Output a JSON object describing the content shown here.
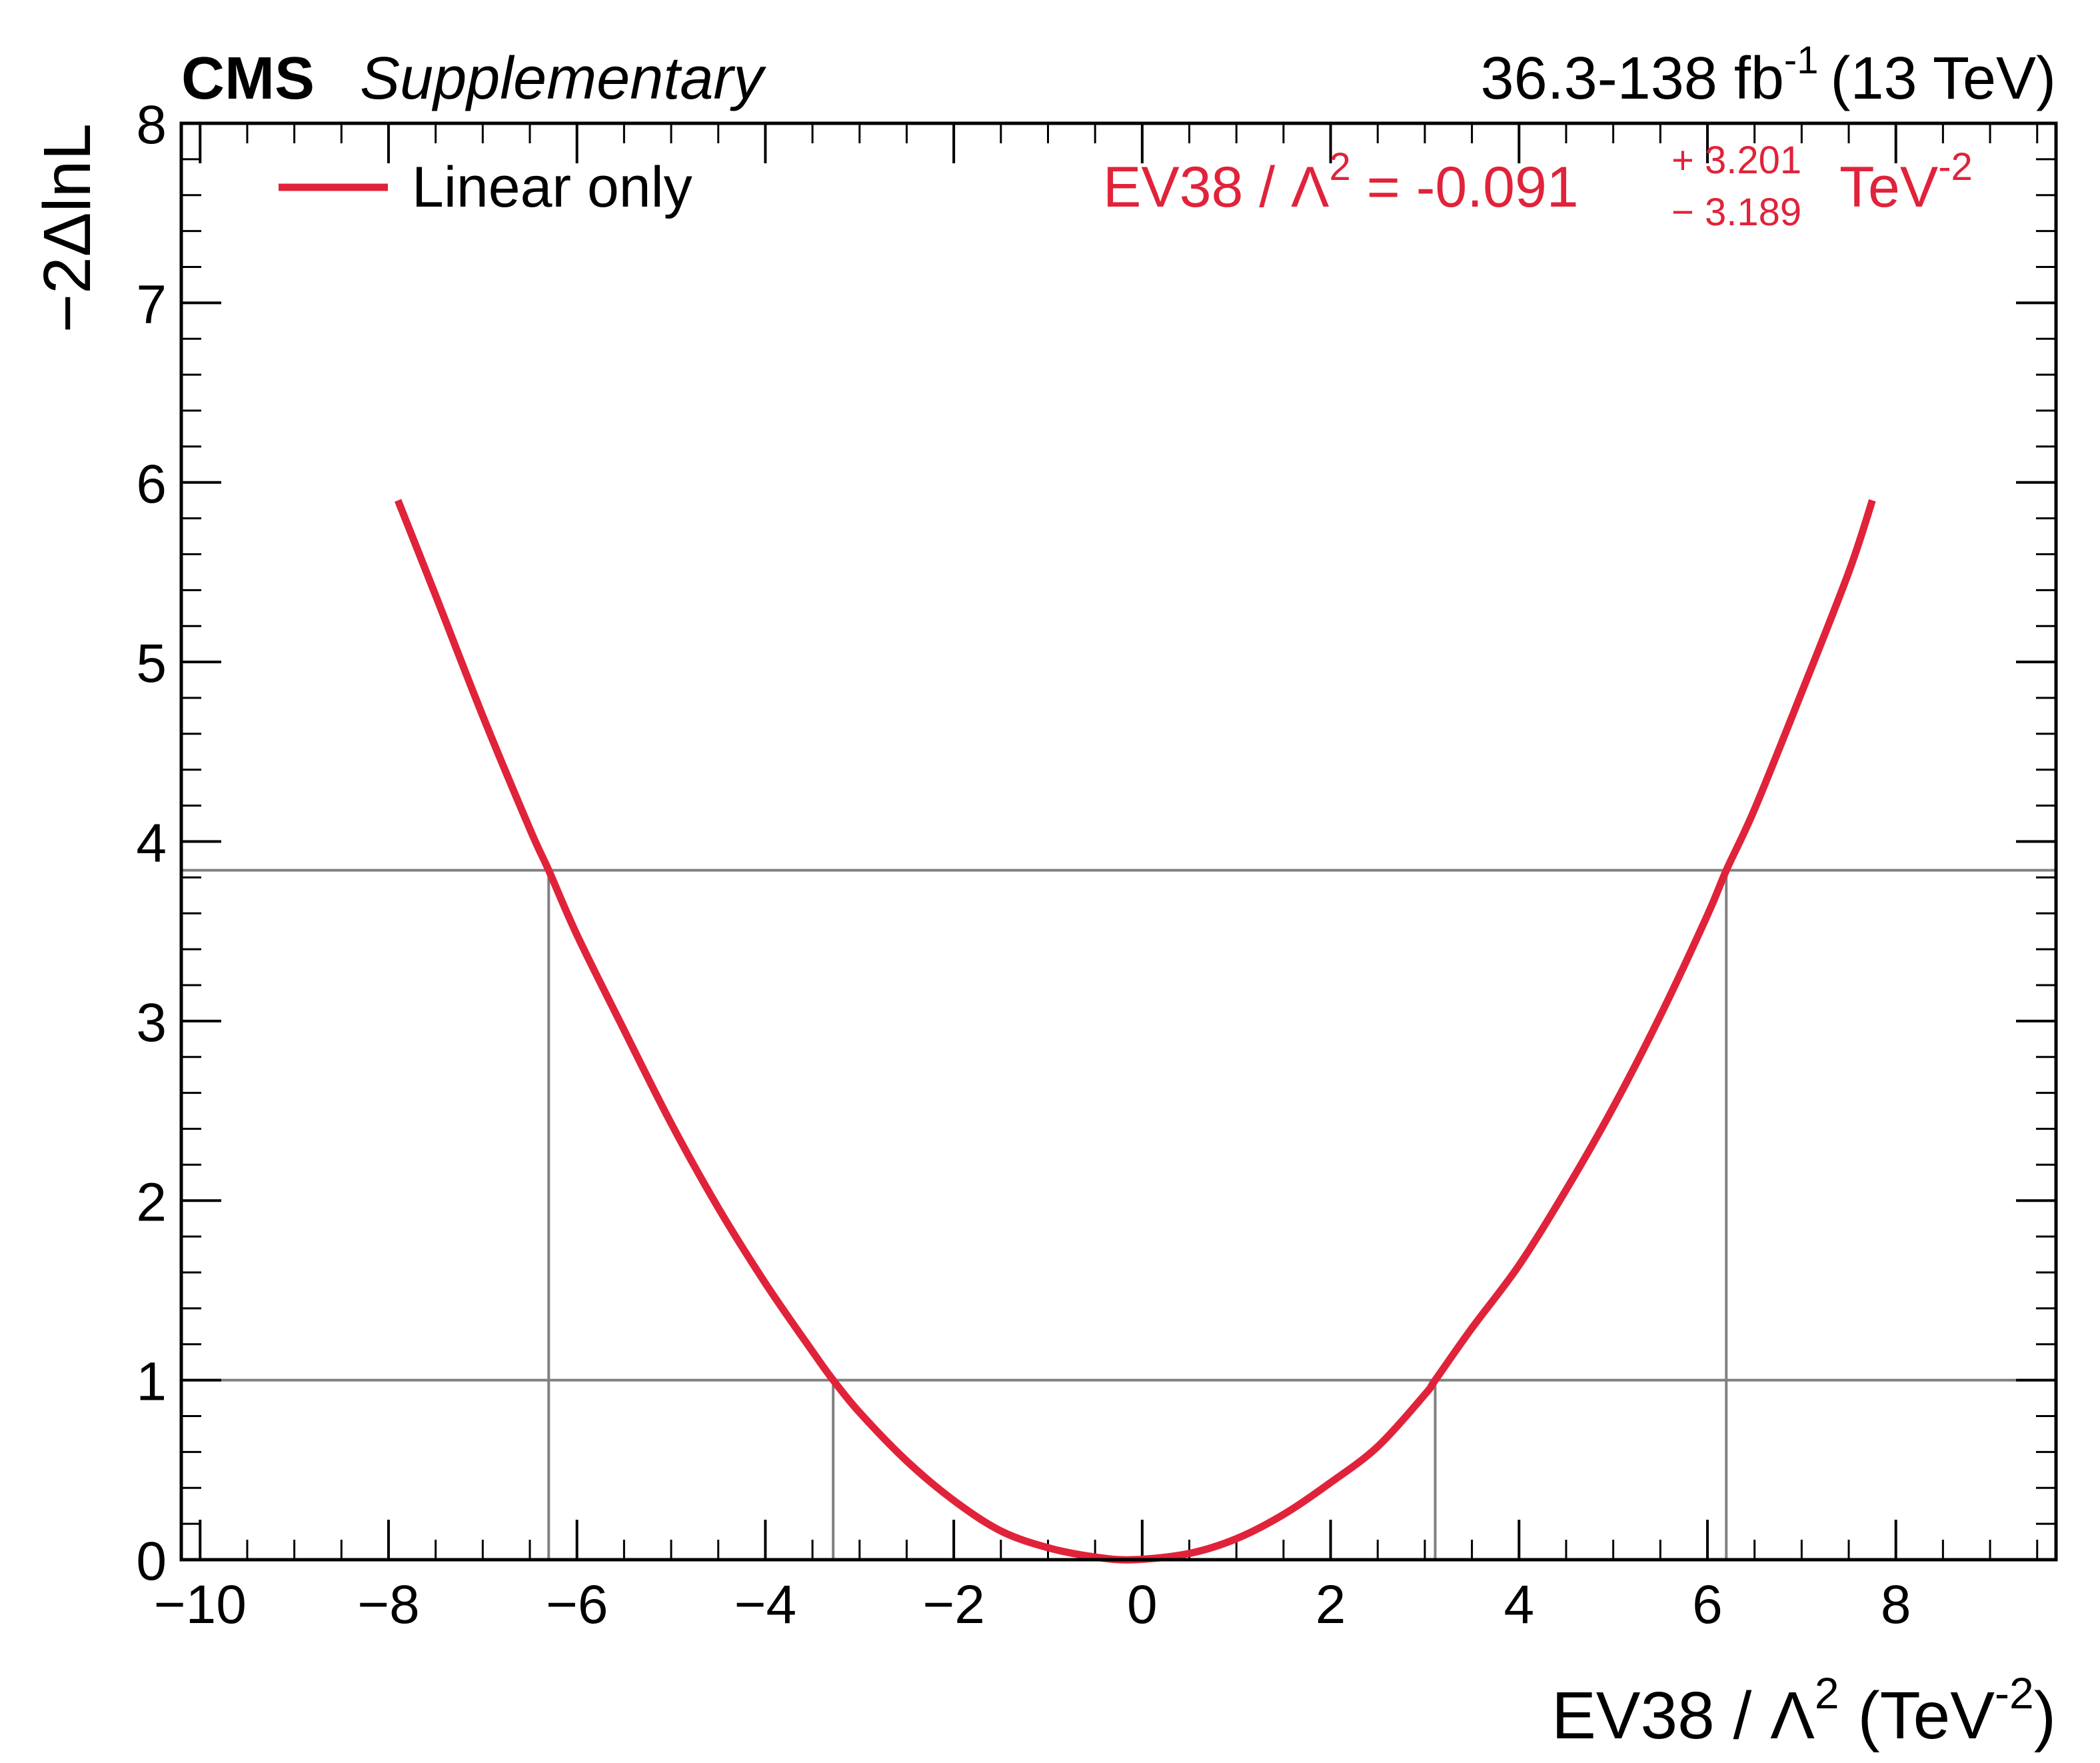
{
  "header": {
    "experiment": "CMS",
    "label": "Supplementary",
    "lumi_text": "36.3-138 fb",
    "lumi_exp": "-1",
    "energy": "(13 TeV)"
  },
  "annotation": {
    "text": "EV38 / Λ",
    "exp": "2",
    "value": " = -0.091",
    "up": "+ 3.201",
    "down": "− 3.189",
    "unit": "TeV",
    "unit_exp": "-2",
    "color": "#e0233a"
  },
  "chart_data": {
    "type": "line",
    "title": "",
    "xlabel_main": "EV38 / Λ",
    "xlabel_exp": "2",
    "xlabel_unit": " (TeV",
    "xlabel_unit_exp": "-2",
    "xlabel_close": ")",
    "ylabel": "−2ΔlnL",
    "xlim": [
      -10.2,
      9.7
    ],
    "ylim": [
      0,
      8
    ],
    "x_ticks": [
      -10,
      -8,
      -6,
      -4,
      -2,
      0,
      2,
      4,
      6,
      8
    ],
    "x_tick_labels": [
      "−10",
      "−8",
      "−6",
      "−4",
      "−2",
      "0",
      "2",
      "4",
      "6",
      "8"
    ],
    "y_ticks": [
      0,
      1,
      2,
      3,
      4,
      5,
      6,
      7,
      8
    ],
    "y_tick_labels": [
      "0",
      "1",
      "2",
      "3",
      "4",
      "5",
      "6",
      "7",
      "8"
    ],
    "series": [
      {
        "name": "Linear only",
        "color": "#e0233a",
        "x": [
          -7.9,
          -7.5,
          -7.0,
          -6.5,
          -6.3,
          -6.0,
          -5.5,
          -5.0,
          -4.5,
          -4.0,
          -3.5,
          -3.28,
          -3.0,
          -2.5,
          -2.0,
          -1.5,
          -1.0,
          -0.5,
          -0.091,
          0.5,
          1.0,
          1.5,
          2.0,
          2.5,
          3.0,
          3.11,
          3.5,
          4.0,
          4.5,
          5.0,
          5.5,
          6.0,
          6.2,
          6.5,
          7.0,
          7.5,
          7.75
        ],
        "y": [
          5.9,
          5.37,
          4.7,
          4.07,
          3.84,
          3.48,
          2.95,
          2.43,
          1.96,
          1.54,
          1.16,
          1.0,
          0.82,
          0.55,
          0.33,
          0.16,
          0.067,
          0.015,
          0.0,
          0.035,
          0.117,
          0.252,
          0.43,
          0.63,
          0.92,
          1.0,
          1.29,
          1.64,
          2.06,
          2.52,
          3.03,
          3.59,
          3.84,
          4.18,
          4.83,
          5.5,
          5.9
        ]
      }
    ],
    "reference_lines": [
      1.0,
      3.84
    ],
    "crossings_1sigma": [
      -3.28,
      3.11
    ],
    "crossings_2sigma": [
      -6.3,
      6.2
    ],
    "legend_position": "top-left"
  }
}
